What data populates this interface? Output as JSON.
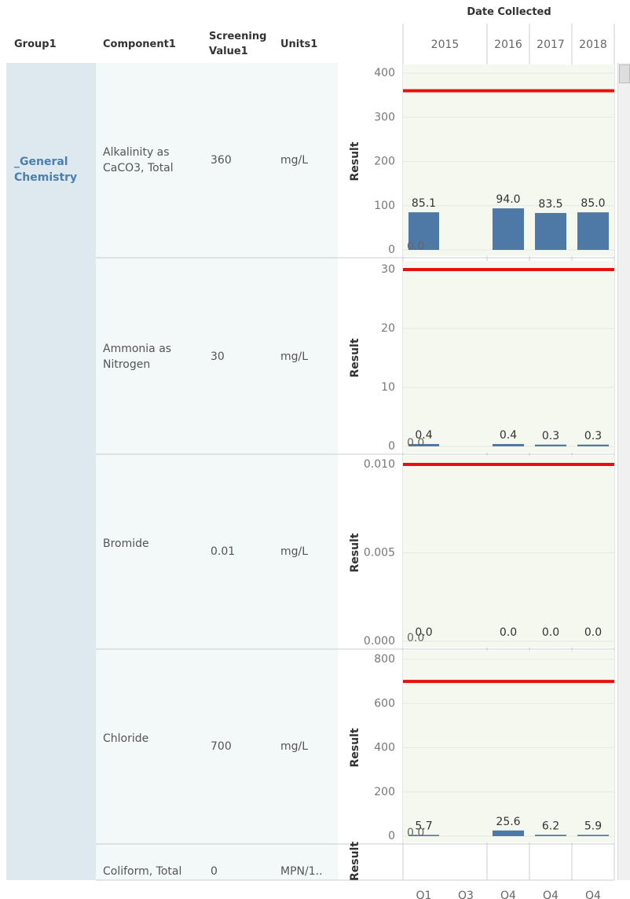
{
  "header": {
    "title": "Date Collected",
    "columns": [
      "Group1",
      "Component1",
      "Screening Value1",
      "Units1"
    ]
  },
  "group": "_General Chemistry",
  "rows": [
    {
      "component": "Alkalinity as CaCO3, Total",
      "screening_value": "360",
      "units": "mg/L"
    },
    {
      "component": "Ammonia as Nitrogen",
      "screening_value": "30",
      "units": "mg/L"
    },
    {
      "component": "Bromide",
      "screening_value": "0.01",
      "units": "mg/L"
    },
    {
      "component": "Chloride",
      "screening_value": "700",
      "units": "mg/L"
    },
    {
      "component": "Coliform, Total",
      "screening_value": "0",
      "units": "MPN/1..",
      "axis_label": "Result"
    }
  ],
  "x_axis": {
    "years": [
      "2015",
      "2016",
      "2017",
      "2018"
    ],
    "categories": [
      "Q1",
      "Q3",
      "Q4",
      "Q4",
      "Q4"
    ]
  },
  "chart_data": [
    {
      "type": "bar",
      "y_label": "Result",
      "color": "#4e79a7",
      "reference_line": 360,
      "reference_color": "#e8100f",
      "values": [
        85.1,
        null,
        94.0,
        83.5,
        85.0
      ],
      "value_labels": [
        "85.1",
        null,
        "94.0",
        "83.5",
        "85.0"
      ],
      "overlay_values": [
        0,
        null,
        null,
        null,
        null
      ],
      "overlay_labels": [
        "0.0",
        null,
        null,
        null,
        null
      ],
      "ylim": [
        0,
        400
      ],
      "yticks": [
        0,
        100,
        200,
        300,
        400
      ],
      "grid": true
    },
    {
      "type": "bar",
      "y_label": "Result",
      "color": "#4e79a7",
      "reference_line": 30,
      "reference_color": "#e8100f",
      "values": [
        0.4,
        null,
        0.4,
        0.3,
        0.3
      ],
      "value_labels": [
        "0.4",
        null,
        "0.4",
        "0.3",
        "0.3"
      ],
      "overlay_values": [
        0,
        null,
        null,
        null,
        null
      ],
      "overlay_labels": [
        "0.0",
        null,
        null,
        null,
        null
      ],
      "ylim": [
        0,
        30
      ],
      "yticks": [
        0,
        10,
        20,
        30
      ],
      "grid": true
    },
    {
      "type": "bar",
      "y_label": "Result",
      "color": "#4e79a7",
      "reference_line": 0.01,
      "reference_color": "#e8100f",
      "values": [
        0,
        null,
        0,
        0,
        0
      ],
      "value_labels": [
        "0.0",
        null,
        "0.0",
        "0.0",
        "0.0"
      ],
      "overlay_values": [
        0,
        null,
        null,
        null,
        null
      ],
      "overlay_labels": [
        "0.0",
        null,
        null,
        null,
        null
      ],
      "ylim": [
        0,
        0.01
      ],
      "yticks": [
        {
          "value": 0,
          "label": "0.000"
        },
        {
          "value": 0.005,
          "label": "0.005"
        },
        {
          "value": 0.01,
          "label": "0.010"
        }
      ],
      "grid": true
    },
    {
      "type": "bar",
      "y_label": "Result",
      "color": "#4e79a7",
      "reference_line": 700,
      "reference_color": "#e8100f",
      "values": [
        5.7,
        null,
        25.6,
        6.2,
        5.9
      ],
      "value_labels": [
        "5.7",
        null,
        "25.6",
        "6.2",
        "5.9"
      ],
      "overlay_values": [
        0,
        null,
        null,
        null,
        null
      ],
      "overlay_labels": [
        "0.0",
        null,
        null,
        null,
        null
      ],
      "ylim": [
        0,
        800
      ],
      "yticks": [
        0,
        200,
        400,
        600,
        800
      ],
      "grid": true
    }
  ]
}
